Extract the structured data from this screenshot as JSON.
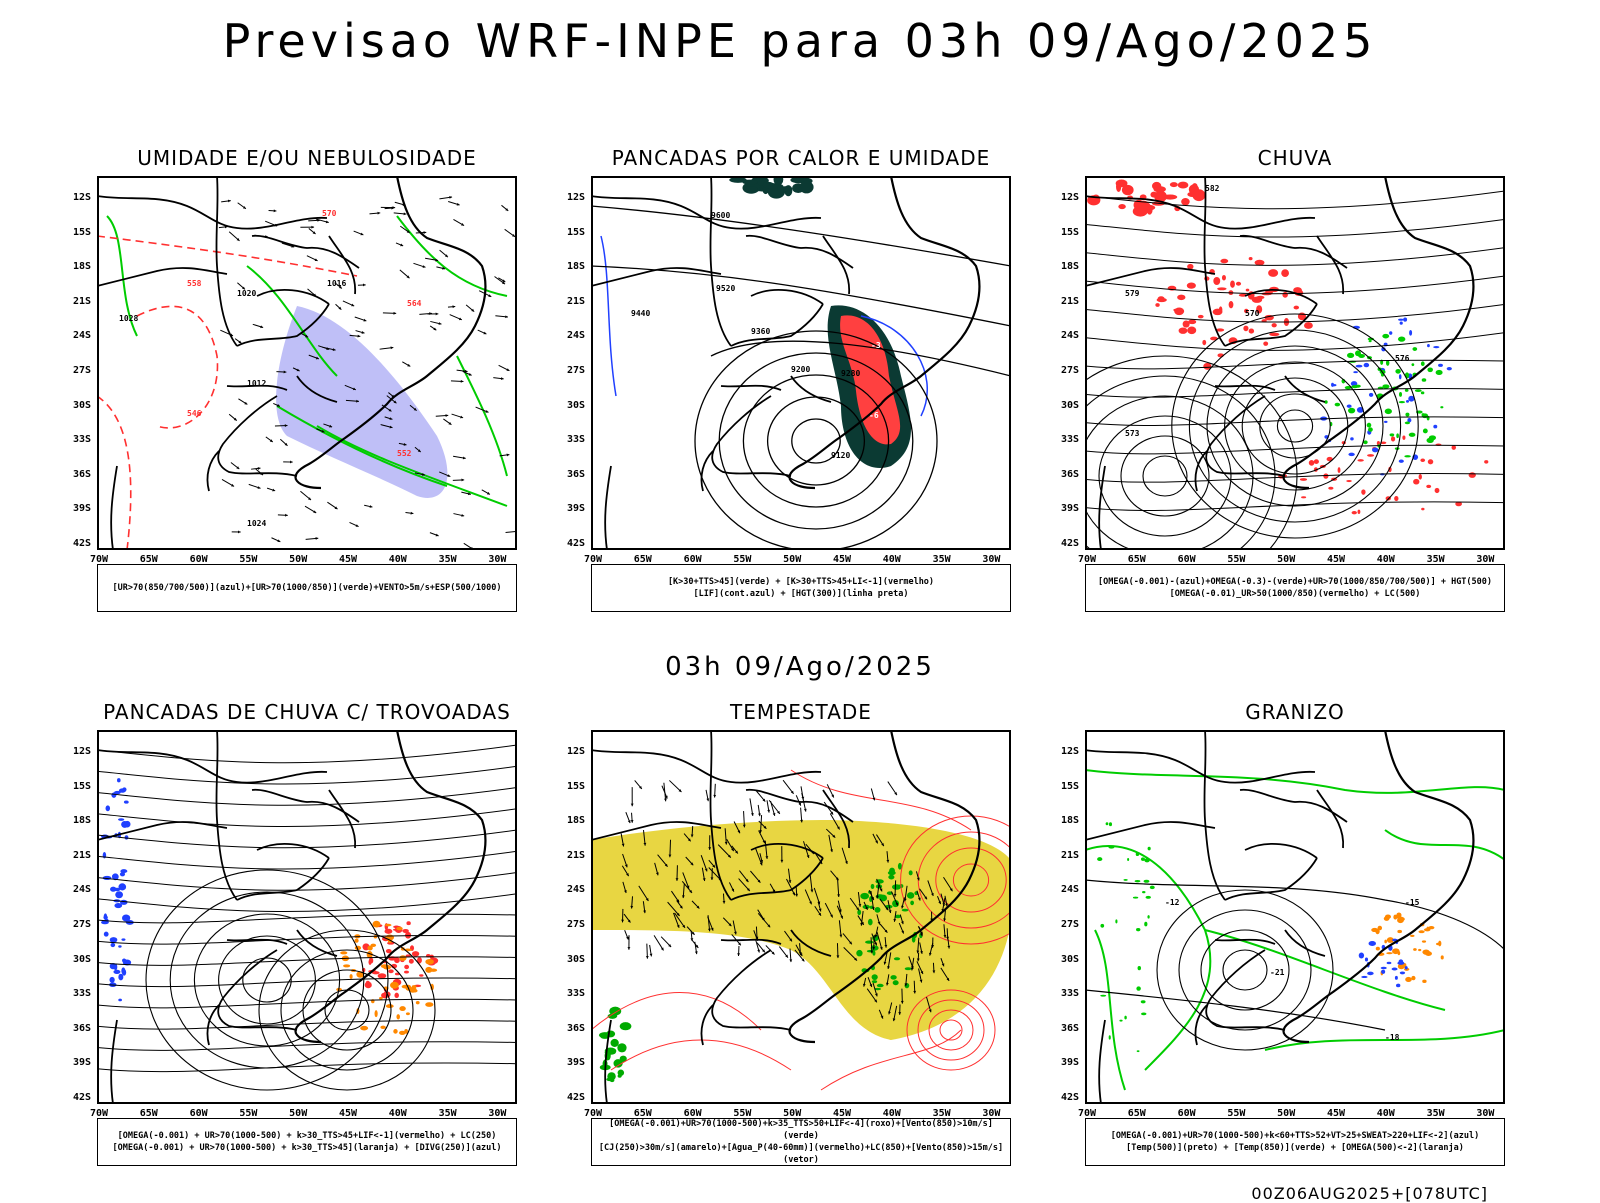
{
  "title": "Previsao WRF-INPE  para 03h 09/Ago/2025",
  "subtitle": "03h 09/Ago/2025",
  "footer": "00Z06AUG2025+[078UTC]",
  "lat_labels": [
    "12S",
    "15S",
    "18S",
    "21S",
    "24S",
    "27S",
    "30S",
    "33S",
    "36S",
    "39S",
    "42S"
  ],
  "lon_labels": [
    "70W",
    "65W",
    "60W",
    "55W",
    "50W",
    "45W",
    "40W",
    "35W",
    "30W"
  ],
  "panels": [
    {
      "title": "UMIDADE E/OU NEBULOSIDADE",
      "legend": [
        "[UR>70(850/700/500)](azul)+[UR>70(1000/850)](verde)+VENTO>5m/s+ESP(500/1000)"
      ],
      "colors": {
        "ur_high": "#8b8bf0",
        "ur_low": "#00cc00",
        "thickness": "#ff3030"
      }
    },
    {
      "title": "PANCADAS POR CALOR E UMIDADE",
      "legend": [
        "[K>30+TTS>45](verde) + [K>30+TTS>45+LI<-1](vermelho)",
        "[LIF](cont.azul) + [HGT(300)](linha preta)"
      ],
      "colors": {
        "green_area": "#0b3a33",
        "red_area": "#ff4040",
        "lif": "#2040ff"
      }
    },
    {
      "title": "CHUVA",
      "legend": [
        "[OMEGA(-0.001)-(azul)+OMEGA(-0.3)-(verde)+UR>70(1000/850/700/500)] + HGT(500)",
        "[OMEGA(-0.01)_UR>50(1000/850)(vermelho) + LC(500)"
      ],
      "colors": {
        "red": "#ff3030",
        "blue": "#2040ff",
        "green": "#00cc00"
      }
    },
    {
      "title": "PANCADAS DE CHUVA C/ TROVOADAS",
      "legend": [
        "[OMEGA(-0.001) + UR>70(1000-500) + k>30_TTS>45+LIF<-1](vermelho) + LC(250)",
        "[OMEGA(-0.001) + UR>70(1000-500) + k>30_TTS>45](laranja) + [DIVG(250)](azul)"
      ],
      "colors": {
        "red": "#ff3030",
        "orange": "#ff8800",
        "blue": "#2040ff"
      }
    },
    {
      "title": "TEMPESTADE",
      "legend": [
        "[OMEGA(-0.001)+UR>70(1000-500)+k>35_TTS>50+LIF<-4](roxo)+[Vento(850)>10m/s](verde)",
        "[CJ(250)>30m/s](amarelo)+[Agua_P(40-60mm)](vermelho)+LC(850)+[Vento(850)>15m/s](vetor)"
      ],
      "colors": {
        "yellow": "#e6d22e",
        "green": "#00aa00",
        "red": "#ff3030"
      }
    },
    {
      "title": "GRANIZO",
      "legend": [
        "[OMEGA(-0.001)+UR>70(1000-500)+k<60+TTS>52+VT>25+SWEAT>220+LIF<-2](azul)",
        "[Temp(500)](preto) + [Temp(850)](verde) + [OMEGA(500)<-2](laranja)"
      ],
      "colors": {
        "green": "#00cc00",
        "orange": "#ff8800",
        "blue": "#2040ff"
      }
    }
  ],
  "contour_labels": {
    "p1": [
      "1012",
      "1016",
      "1020",
      "1024",
      "1028",
      "546",
      "552",
      "558",
      "564",
      "570"
    ],
    "p2": [
      "9600",
      "9520",
      "9440",
      "9360",
      "9280",
      "9200",
      "9120",
      "-3",
      "-6"
    ],
    "p3": [
      "582",
      "573",
      "579",
      "576",
      "570"
    ],
    "p6": [
      "-12",
      "-21",
      "-15",
      "-18"
    ]
  }
}
